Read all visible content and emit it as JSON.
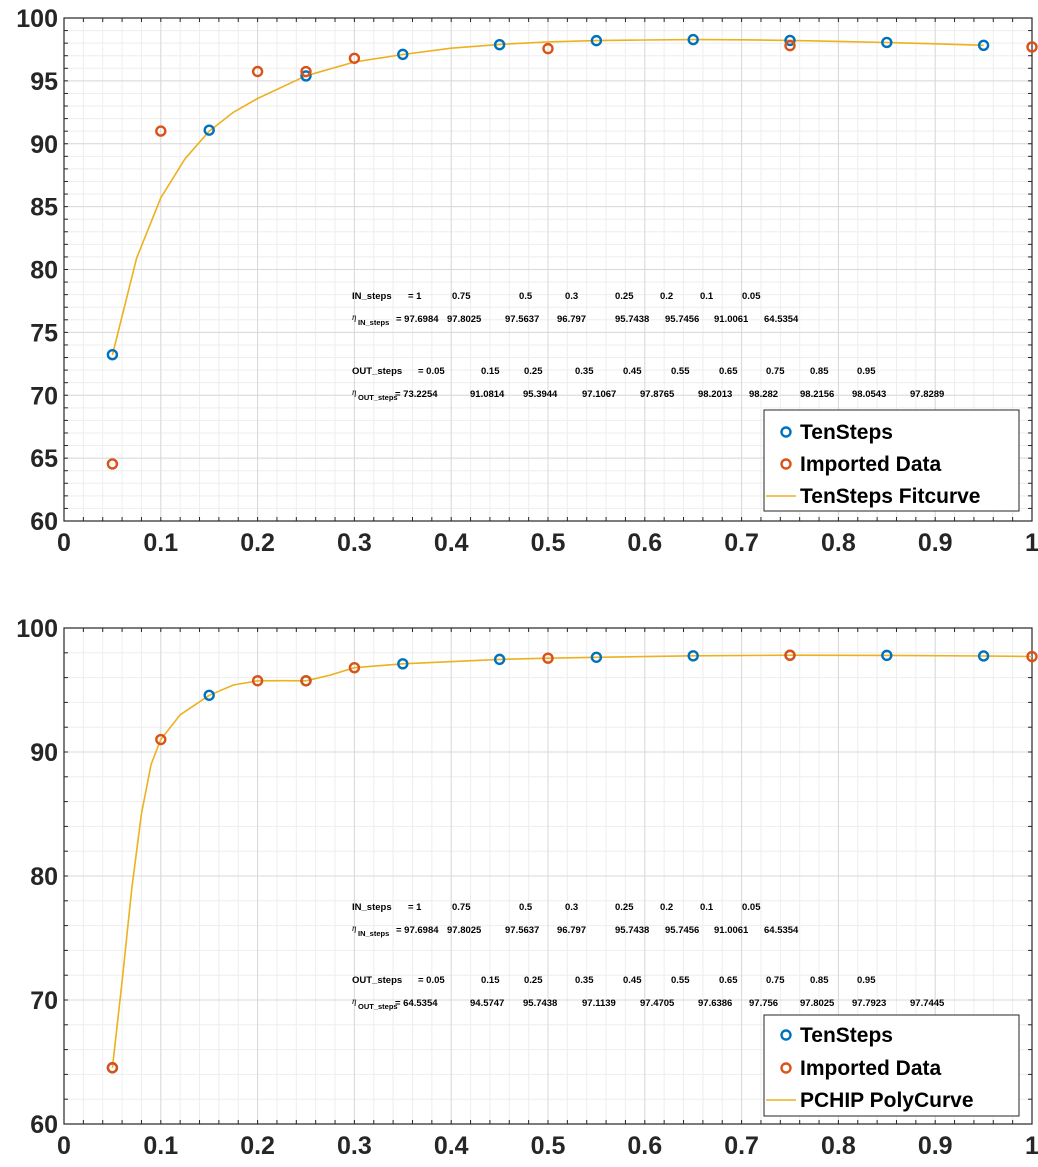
{
  "colors": {
    "tensteps": "#0072BD",
    "imported": "#D95319",
    "curve": "#EDB120",
    "grid_major": "#d9d9d9",
    "grid_minor": "#eeeeee",
    "axis": "#262626"
  },
  "chart_data": [
    {
      "type": "scatter",
      "xlim": [
        0,
        1
      ],
      "ylim": [
        60,
        100
      ],
      "xticks": [
        "0",
        "0.1",
        "0.2",
        "0.3",
        "0.4",
        "0.5",
        "0.6",
        "0.7",
        "0.8",
        "0.9",
        "1"
      ],
      "yticks": [
        "60",
        "65",
        "70",
        "75",
        "80",
        "85",
        "90",
        "95",
        "100"
      ],
      "grid": true,
      "minor_grid": true,
      "legend_position": "bottom-right",
      "series": [
        {
          "name": "TenSteps",
          "kind": "markers",
          "color": "#0072BD",
          "x": [
            0.05,
            0.15,
            0.25,
            0.35,
            0.45,
            0.55,
            0.65,
            0.75,
            0.85,
            0.95
          ],
          "y": [
            73.2254,
            91.0814,
            95.3944,
            97.1067,
            97.8765,
            98.2013,
            98.282,
            98.2156,
            98.0543,
            97.8289
          ]
        },
        {
          "name": "Imported Data",
          "kind": "markers",
          "color": "#D95319",
          "x": [
            1,
            0.75,
            0.5,
            0.3,
            0.25,
            0.2,
            0.1,
            0.05
          ],
          "y": [
            97.6984,
            97.8025,
            97.5637,
            96.797,
            95.7438,
            95.7456,
            91.0061,
            64.5354
          ]
        },
        {
          "name": "TenSteps Fitcurve",
          "kind": "curve",
          "color": "#EDB120",
          "x": [
            0.05,
            0.075,
            0.1,
            0.125,
            0.15,
            0.175,
            0.2,
            0.25,
            0.3,
            0.35,
            0.4,
            0.45,
            0.5,
            0.55,
            0.6,
            0.65,
            0.7,
            0.75,
            0.8,
            0.85,
            0.9,
            0.95
          ],
          "y": [
            73.2,
            80.9,
            85.7,
            88.8,
            91.0,
            92.5,
            93.6,
            95.4,
            96.5,
            97.1,
            97.6,
            97.9,
            98.1,
            98.2,
            98.25,
            98.28,
            98.27,
            98.22,
            98.14,
            98.05,
            97.95,
            97.83
          ]
        }
      ],
      "annotations": {
        "in_steps_label": "IN_steps",
        "in_steps_values": [
          "= 1",
          "0.75",
          "0.5",
          "0.3",
          "0.25",
          "0.2",
          "0.1",
          "0.05"
        ],
        "eta_symbol": "η",
        "eta_in_sub": "IN_steps",
        "eta_in_values": [
          "= 97.6984",
          "97.8025",
          "97.5637",
          "96.797",
          "95.7438",
          "95.7456",
          "91.0061",
          "64.5354"
        ],
        "out_steps_label": "OUT_steps",
        "out_steps_values": [
          "= 0.05",
          "0.15",
          "0.25",
          "0.35",
          "0.45",
          "0.55",
          "0.65",
          "0.75",
          "0.85",
          "0.95"
        ],
        "eta_out_sub": "OUT_steps",
        "eta_out_values": [
          "= 73.2254",
          "91.0814",
          "95.3944",
          "97.1067",
          "97.8765",
          "98.2013",
          "98.282",
          "98.2156",
          "98.0543",
          "97.8289"
        ]
      }
    },
    {
      "type": "scatter",
      "xlim": [
        0,
        1
      ],
      "ylim": [
        60,
        100
      ],
      "xticks": [
        "0",
        "0.1",
        "0.2",
        "0.3",
        "0.4",
        "0.5",
        "0.6",
        "0.7",
        "0.8",
        "0.9",
        "1"
      ],
      "yticks": [
        "60",
        "70",
        "80",
        "90",
        "100"
      ],
      "grid": true,
      "minor_grid": true,
      "legend_position": "bottom-right",
      "series": [
        {
          "name": "TenSteps",
          "kind": "markers",
          "color": "#0072BD",
          "x": [
            0.05,
            0.15,
            0.25,
            0.35,
            0.45,
            0.55,
            0.65,
            0.75,
            0.85,
            0.95
          ],
          "y": [
            64.5354,
            94.5747,
            95.7438,
            97.1139,
            97.4705,
            97.6386,
            97.756,
            97.8025,
            97.7923,
            97.7445
          ]
        },
        {
          "name": "Imported Data",
          "kind": "markers",
          "color": "#D95319",
          "x": [
            1,
            0.75,
            0.5,
            0.3,
            0.25,
            0.2,
            0.1,
            0.05
          ],
          "y": [
            97.6984,
            97.8025,
            97.5637,
            96.797,
            95.7438,
            95.7456,
            91.0061,
            64.5354
          ]
        },
        {
          "name": "PCHIP PolyCurve",
          "kind": "curve",
          "color": "#EDB120",
          "x": [
            0.05,
            0.06,
            0.07,
            0.08,
            0.09,
            0.1,
            0.12,
            0.15,
            0.175,
            0.2,
            0.225,
            0.25,
            0.275,
            0.3,
            0.35,
            0.45,
            0.5,
            0.55,
            0.65,
            0.75,
            0.85,
            0.95,
            1
          ],
          "y": [
            64.5354,
            71.5,
            79.0,
            85.0,
            89.0,
            91.0061,
            93.0,
            94.5747,
            95.4,
            95.7456,
            95.75,
            95.7438,
            96.2,
            96.797,
            97.1139,
            97.4705,
            97.5637,
            97.6386,
            97.756,
            97.8025,
            97.7923,
            97.7445,
            97.6984
          ]
        }
      ],
      "annotations": {
        "in_steps_label": "IN_steps",
        "in_steps_values": [
          "= 1",
          "0.75",
          "0.5",
          "0.3",
          "0.25",
          "0.2",
          "0.1",
          "0.05"
        ],
        "eta_symbol": "η",
        "eta_in_sub": "IN_steps",
        "eta_in_values": [
          "= 97.6984",
          "97.8025",
          "97.5637",
          "96.797",
          "95.7438",
          "95.7456",
          "91.0061",
          "64.5354"
        ],
        "out_steps_label": "OUT_steps",
        "out_steps_values": [
          "= 0.05",
          "0.15",
          "0.25",
          "0.35",
          "0.45",
          "0.55",
          "0.65",
          "0.75",
          "0.85",
          "0.95"
        ],
        "eta_out_sub": "OUT_steps",
        "eta_out_values": [
          "= 64.5354",
          "94.5747",
          "95.7438",
          "97.1139",
          "97.4705",
          "97.6386",
          "97.756",
          "97.8025",
          "97.7923",
          "97.7445"
        ]
      }
    }
  ]
}
